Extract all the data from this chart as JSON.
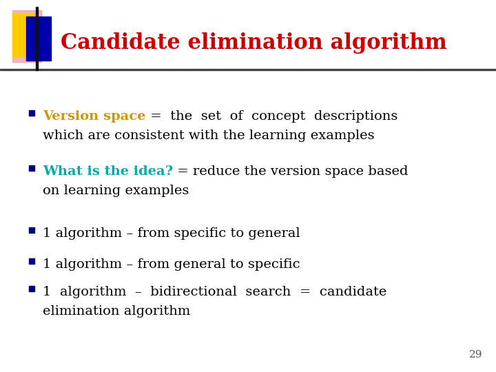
{
  "title": "Candidate elimination algorithm",
  "title_color": "#cc0000",
  "title_fontsize": 22,
  "bg_color": "#ffffff",
  "slide_number": "29",
  "bullet_color": "#000080",
  "bullet_fontsize": 14,
  "header_bar_color": "#444444",
  "logo_yellow": "#ffcc00",
  "logo_blue": "#0000aa",
  "logo_red": "#cc3333",
  "logo_pink": "#ee8888",
  "bullet_items": [
    {
      "keyword": "Version space",
      "keyword_color": "#cc9900",
      "rest_line1": " =  the  set  of  concept  descriptions",
      "rest_line2": "which are consistent with the learning examples",
      "has_keyword": true
    },
    {
      "keyword": "What is the idea?",
      "keyword_color": "#00aaaa",
      "rest_line1": " = reduce the version space based",
      "rest_line2": "on learning examples",
      "has_keyword": true
    },
    {
      "keyword": "",
      "keyword_color": "#000000",
      "rest_line1": "1 algorithm – from specific to general",
      "rest_line2": "",
      "has_keyword": false
    },
    {
      "keyword": "",
      "keyword_color": "#000000",
      "rest_line1": "1 algorithm – from general to specific",
      "rest_line2": "",
      "has_keyword": false
    },
    {
      "keyword": "",
      "keyword_color": "#000000",
      "rest_line1": "1  algorithm  –  bidirectional  search  =  candidate",
      "rest_line2": "elimination algorithm",
      "has_keyword": false
    }
  ]
}
